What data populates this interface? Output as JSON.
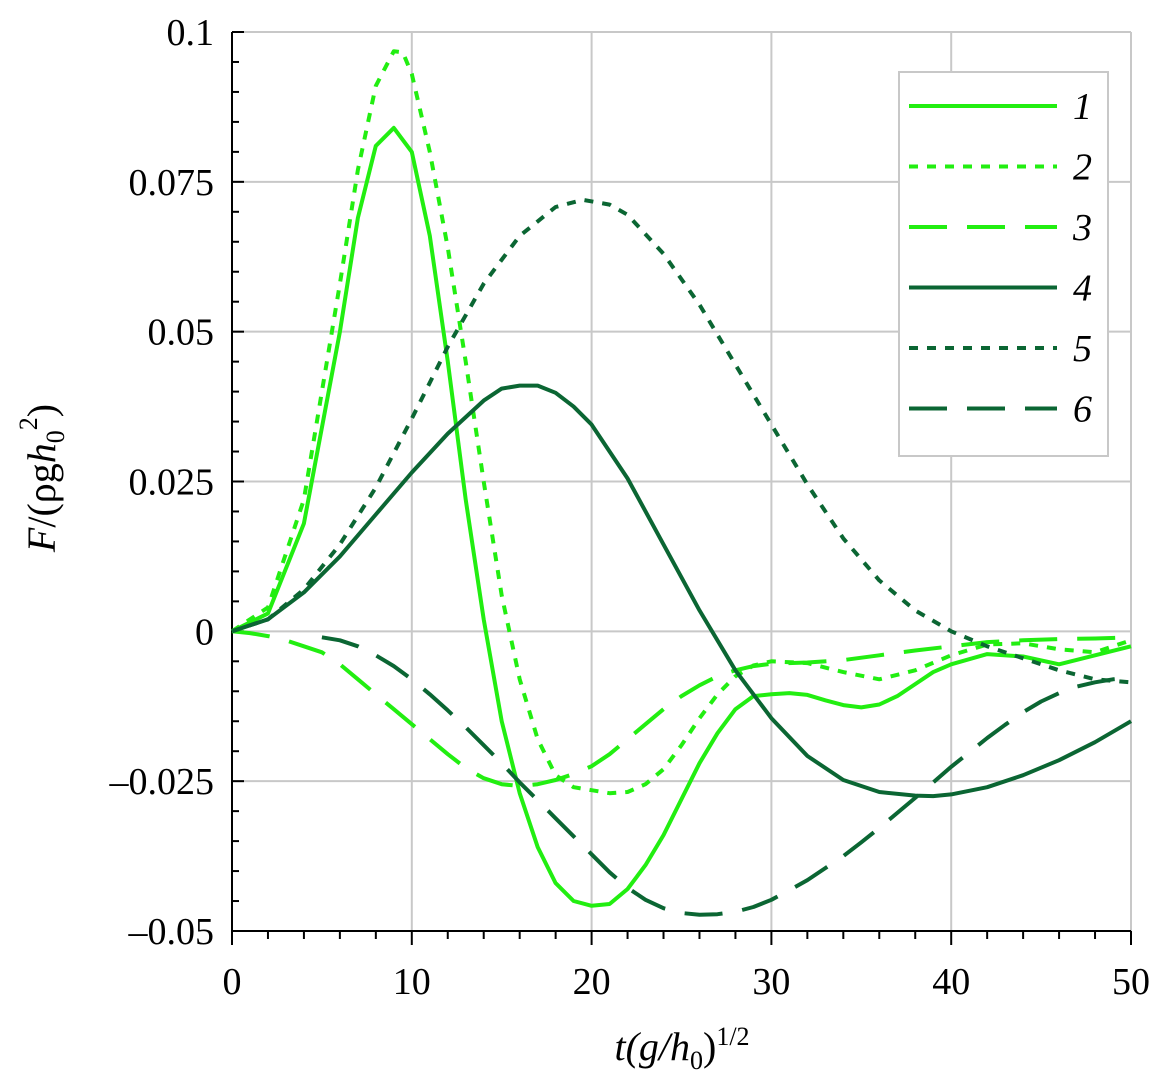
{
  "chart_data": {
    "type": "line",
    "xlabel": {
      "t": "t",
      "open": "(g/h",
      "sub": "0",
      "close": ")",
      "sup": "1/2"
    },
    "ylabel": {
      "F": "F",
      "mid": "/(ρg",
      "h": "h",
      "sub": "0",
      "sup": "2",
      "close": ")"
    },
    "xlim": [
      0,
      50
    ],
    "ylim": [
      -0.05,
      0.1
    ],
    "xticks": [
      0,
      10,
      20,
      30,
      40,
      50
    ],
    "xtick_labels": [
      "0",
      "10",
      "20",
      "30",
      "40",
      "50"
    ],
    "yticks": [
      -0.05,
      -0.025,
      0,
      0.025,
      0.05,
      0.075,
      0.1
    ],
    "ytick_labels": [
      "–0.05",
      "–0.025",
      "0",
      "0.025",
      "0.05",
      "0.075",
      "0.1"
    ],
    "grid": true,
    "legend_position": "top-right",
    "colors": {
      "light": "#22ee11",
      "dark": "#0b6633"
    },
    "series": [
      {
        "name": "1",
        "style": "solid",
        "color": "#22ee11",
        "x": [
          0,
          2,
          4,
          6,
          7,
          8,
          9,
          10,
          11,
          12,
          13,
          14,
          15,
          16,
          17,
          18,
          19,
          20,
          21,
          22,
          23,
          24,
          25,
          26,
          27,
          28,
          29,
          30,
          31,
          32,
          33,
          34,
          35,
          36,
          37,
          38,
          39,
          40,
          42,
          44,
          46,
          48,
          50
        ],
        "y": [
          0,
          0.003,
          0.018,
          0.05,
          0.069,
          0.081,
          0.084,
          0.08,
          0.066,
          0.045,
          0.022,
          0.002,
          -0.015,
          -0.027,
          -0.036,
          -0.042,
          -0.045,
          -0.0458,
          -0.0455,
          -0.043,
          -0.039,
          -0.034,
          -0.028,
          -0.022,
          -0.017,
          -0.013,
          -0.0108,
          -0.0105,
          -0.0103,
          -0.0106,
          -0.0115,
          -0.0123,
          -0.0127,
          -0.0122,
          -0.0108,
          -0.0088,
          -0.0068,
          -0.0055,
          -0.0038,
          -0.0042,
          -0.0055,
          -0.004,
          -0.0025
        ]
      },
      {
        "name": "2",
        "style": "dotted",
        "color": "#22ee11",
        "x": [
          0,
          2,
          4,
          6,
          7,
          8,
          9,
          9.5,
          10,
          11,
          12,
          13,
          14,
          15,
          16,
          17,
          18,
          19,
          20,
          21,
          22,
          23,
          24,
          25,
          26,
          27,
          28,
          29,
          30,
          32,
          34,
          36,
          38,
          40,
          42,
          44,
          46,
          48,
          50
        ],
        "y": [
          0,
          0.004,
          0.022,
          0.058,
          0.077,
          0.091,
          0.0968,
          0.0966,
          0.093,
          0.08,
          0.064,
          0.045,
          0.025,
          0.006,
          -0.008,
          -0.018,
          -0.024,
          -0.026,
          -0.0265,
          -0.027,
          -0.0268,
          -0.0255,
          -0.023,
          -0.019,
          -0.0145,
          -0.0105,
          -0.0075,
          -0.0057,
          -0.005,
          -0.0053,
          -0.0068,
          -0.008,
          -0.0065,
          -0.004,
          -0.0022,
          -0.002,
          -0.003,
          -0.0035,
          -0.0015
        ]
      },
      {
        "name": "3",
        "style": "dashed",
        "color": "#22ee11",
        "x": [
          0,
          1,
          2,
          3,
          4,
          5,
          6,
          7,
          8,
          9,
          10,
          11,
          12,
          13,
          14,
          15,
          16,
          17,
          18,
          19,
          20,
          21,
          22,
          23,
          24,
          25,
          26,
          27,
          28,
          29,
          30,
          32,
          34,
          36,
          38,
          40,
          42,
          44,
          46,
          48,
          50
        ],
        "y": [
          0,
          -0.0003,
          -0.0008,
          -0.0015,
          -0.0025,
          -0.0035,
          -0.0055,
          -0.008,
          -0.0105,
          -0.013,
          -0.0155,
          -0.018,
          -0.0205,
          -0.0228,
          -0.0245,
          -0.0255,
          -0.0258,
          -0.0255,
          -0.0248,
          -0.0238,
          -0.0225,
          -0.0205,
          -0.018,
          -0.0155,
          -0.013,
          -0.0108,
          -0.009,
          -0.0075,
          -0.0065,
          -0.0058,
          -0.0054,
          -0.0052,
          -0.0048,
          -0.004,
          -0.0032,
          -0.0025,
          -0.0018,
          -0.0015,
          -0.0013,
          -0.0012,
          -0.001
        ]
      },
      {
        "name": "4",
        "style": "solid",
        "color": "#0b6633",
        "x": [
          0,
          2,
          4,
          6,
          8,
          10,
          12,
          14,
          15,
          16,
          17,
          18,
          19,
          20,
          22,
          24,
          26,
          28,
          30,
          32,
          34,
          36,
          38,
          39,
          40,
          42,
          44,
          46,
          48,
          50
        ],
        "y": [
          0,
          0.002,
          0.0065,
          0.0125,
          0.0195,
          0.0265,
          0.033,
          0.0385,
          0.0405,
          0.041,
          0.041,
          0.0398,
          0.0375,
          0.0345,
          0.0255,
          0.0145,
          0.0035,
          -0.0065,
          -0.0145,
          -0.0208,
          -0.0248,
          -0.0268,
          -0.0274,
          -0.0275,
          -0.0272,
          -0.026,
          -0.024,
          -0.0215,
          -0.0185,
          -0.015
        ]
      },
      {
        "name": "5",
        "style": "dotted",
        "color": "#0b6633",
        "x": [
          0,
          2,
          4,
          6,
          8,
          10,
          12,
          14,
          16,
          18,
          19.5,
          21,
          22,
          24,
          26,
          28,
          30,
          32,
          34,
          36,
          38,
          40,
          42,
          44,
          46,
          48,
          50
        ],
        "y": [
          0,
          0.002,
          0.007,
          0.0145,
          0.024,
          0.0355,
          0.0475,
          0.058,
          0.066,
          0.0708,
          0.072,
          0.0712,
          0.0695,
          0.063,
          0.0545,
          0.0445,
          0.0345,
          0.0245,
          0.0155,
          0.0085,
          0.0035,
          0.0,
          -0.0025,
          -0.0045,
          -0.0065,
          -0.008,
          -0.0085
        ]
      },
      {
        "name": "6",
        "style": "dashed",
        "color": "#0b6633",
        "x": [
          5,
          6,
          7,
          8,
          9,
          10,
          11,
          12,
          13,
          14,
          15,
          16,
          17,
          18,
          19,
          20,
          21,
          22,
          23,
          24,
          25,
          26,
          27,
          28,
          29,
          30,
          31,
          32,
          33,
          34,
          35,
          36,
          37,
          38,
          39,
          40,
          41,
          42,
          43,
          44,
          45,
          46,
          47,
          48,
          49,
          50
        ],
        "y": [
          -0.001,
          -0.0015,
          -0.0025,
          -0.004,
          -0.0058,
          -0.008,
          -0.0105,
          -0.0132,
          -0.016,
          -0.019,
          -0.022,
          -0.0252,
          -0.0282,
          -0.0312,
          -0.0342,
          -0.0372,
          -0.0402,
          -0.0428,
          -0.0448,
          -0.0462,
          -0.047,
          -0.0473,
          -0.0472,
          -0.0468,
          -0.046,
          -0.0448,
          -0.0432,
          -0.0415,
          -0.0395,
          -0.0375,
          -0.0352,
          -0.0328,
          -0.0303,
          -0.0278,
          -0.0252,
          -0.0226,
          -0.0202,
          -0.0178,
          -0.0156,
          -0.0135,
          -0.0117,
          -0.0103,
          -0.0092,
          -0.0085,
          -0.008,
          -0.0078
        ]
      }
    ]
  }
}
